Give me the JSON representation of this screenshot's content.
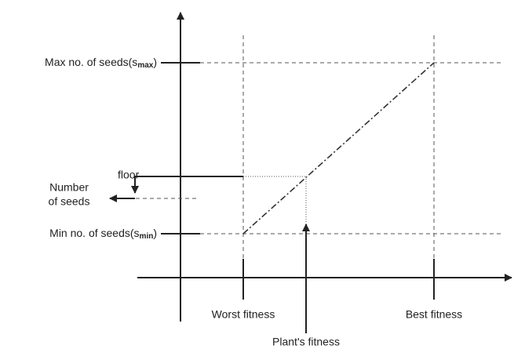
{
  "labels": {
    "max_seeds": {
      "text": "Max no. of seeds(s",
      "sub": "max",
      "close": ")"
    },
    "min_seeds": {
      "text": "Min no. of seeds(s",
      "sub": "min",
      "close": ")"
    },
    "floor": "floor",
    "number_of_seeds": [
      "Number",
      "of seeds"
    ],
    "worst_fitness": "Worst fitness",
    "best_fitness": "Best fitness",
    "plants_fitness": "Plant's fitness"
  }
}
